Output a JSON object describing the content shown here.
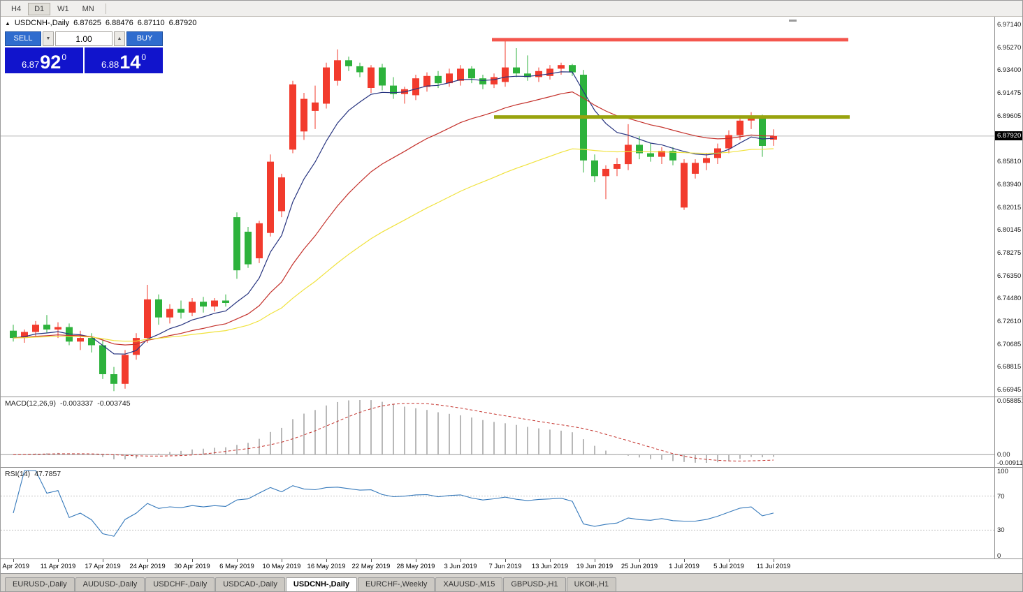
{
  "toolbar": {
    "timeframes": [
      {
        "label": "H4",
        "active": false
      },
      {
        "label": "D1",
        "active": true
      },
      {
        "label": "W1",
        "active": false
      },
      {
        "label": "MN",
        "active": false
      }
    ]
  },
  "chart": {
    "collapse_glyph": "▲",
    "title": "USDCNH-,Daily",
    "ohlc": {
      "open": "6.87625",
      "high": "6.88476",
      "low": "6.87110",
      "close": "6.87920"
    }
  },
  "one_click": {
    "sell_label": "SELL",
    "buy_label": "BUY",
    "volume": "1.00",
    "volume_down_glyph": "▼",
    "volume_up_glyph": "▲",
    "sell_price": {
      "main": "6.87",
      "pips": "92",
      "sub": "0"
    },
    "buy_price": {
      "main": "6.88",
      "pips": "14",
      "sub": "0"
    }
  },
  "price_axis": {
    "labels": [
      [
        "6.97140",
        6.9714
      ],
      [
        "6.95270",
        6.9527
      ],
      [
        "6.93400",
        6.934
      ],
      [
        "6.91475",
        6.91475
      ],
      [
        "6.89605",
        6.89605
      ],
      [
        "6.85810",
        6.8581
      ],
      [
        "6.83940",
        6.8394
      ],
      [
        "6.82015",
        6.82015
      ],
      [
        "6.80145",
        6.80145
      ],
      [
        "6.78275",
        6.78275
      ],
      [
        "6.76350",
        6.7635
      ],
      [
        "6.74480",
        6.7448
      ],
      [
        "6.72610",
        6.7261
      ],
      [
        "6.70685",
        6.70685
      ],
      [
        "6.68815",
        6.68815
      ],
      [
        "6.66945",
        6.66945
      ]
    ],
    "current": {
      "text": "6.87920",
      "value": 6.8792
    }
  },
  "indicators": {
    "macd": {
      "label": "MACD(12,26,9)",
      "value_main": "-0.003337",
      "value_signal": "-0.003745",
      "params": [
        12,
        26,
        9
      ],
      "axis": [
        [
          "0.058851",
          "max"
        ],
        [
          "0.00",
          "zero"
        ],
        [
          "-0.009116",
          "min"
        ]
      ]
    },
    "rsi": {
      "label": "RSI(14)",
      "value": "47.7857",
      "period": 14,
      "levels": [
        70,
        30
      ],
      "axis": [
        [
          "100",
          100
        ],
        [
          "70",
          70
        ],
        [
          "30",
          30
        ],
        [
          "0",
          0
        ]
      ]
    }
  },
  "date_axis": {
    "labels": [
      [
        0,
        "5 Apr 2019"
      ],
      [
        4,
        "11 Apr 2019"
      ],
      [
        8,
        "17 Apr 2019"
      ],
      [
        12,
        "24 Apr 2019"
      ],
      [
        16,
        "30 Apr 2019"
      ],
      [
        20,
        "6 May 2019"
      ],
      [
        24,
        "10 May 2019"
      ],
      [
        28,
        "16 May 2019"
      ],
      [
        32,
        "22 May 2019"
      ],
      [
        36,
        "28 May 2019"
      ],
      [
        40,
        "3 Jun 2019"
      ],
      [
        44,
        "7 Jun 2019"
      ],
      [
        48,
        "13 Jun 2019"
      ],
      [
        52,
        "19 Jun 2019"
      ],
      [
        56,
        "25 Jun 2019"
      ],
      [
        60,
        "1 Jul 2019"
      ],
      [
        64,
        "5 Jul 2019"
      ],
      [
        68,
        "11 Jul 2019"
      ]
    ]
  },
  "tabs": [
    {
      "label": "EURUSD-,Daily",
      "active": false
    },
    {
      "label": "AUDUSD-,Daily",
      "active": false
    },
    {
      "label": "USDCHF-,Daily",
      "active": false
    },
    {
      "label": "USDCAD-,Daily",
      "active": false
    },
    {
      "label": "USDCNH-,Daily",
      "active": true
    },
    {
      "label": "EURCHF-,Weekly",
      "active": false
    },
    {
      "label": "XAUUSD-,M15",
      "active": false
    },
    {
      "label": "GBPUSD-,H1",
      "active": false
    },
    {
      "label": "UKOil-,H1",
      "active": false
    }
  ],
  "chart_data": {
    "type": "candlestick",
    "symbol": "USDCNH-",
    "timeframe": "Daily",
    "ylim": [
      6.66945,
      6.9714
    ],
    "current_price": 6.8792,
    "last_ohlc": [
      6.87625,
      6.88476,
      6.8711,
      6.8792
    ],
    "candles": [
      [
        6.718,
        6.723,
        6.709,
        6.712
      ],
      [
        6.712,
        6.719,
        6.708,
        6.717
      ],
      [
        6.717,
        6.726,
        6.713,
        6.723
      ],
      [
        6.723,
        6.731,
        6.716,
        6.719
      ],
      [
        6.719,
        6.725,
        6.712,
        6.721
      ],
      [
        6.721,
        6.724,
        6.706,
        6.709
      ],
      [
        6.709,
        6.718,
        6.702,
        6.712
      ],
      [
        6.712,
        6.716,
        6.7,
        6.706
      ],
      [
        6.706,
        6.71,
        6.678,
        6.682
      ],
      [
        6.682,
        6.688,
        6.668,
        6.674
      ],
      [
        6.674,
        6.702,
        6.67,
        6.698
      ],
      [
        6.698,
        6.716,
        6.694,
        6.712
      ],
      [
        6.712,
        6.756,
        6.708,
        6.744
      ],
      [
        6.744,
        6.748,
        6.723,
        6.729
      ],
      [
        6.729,
        6.74,
        6.724,
        6.736
      ],
      [
        6.736,
        6.743,
        6.728,
        6.733
      ],
      [
        6.733,
        6.745,
        6.73,
        6.742
      ],
      [
        6.742,
        6.746,
        6.733,
        6.738
      ],
      [
        6.738,
        6.745,
        6.734,
        6.743
      ],
      [
        6.743,
        6.748,
        6.738,
        6.741
      ],
      [
        6.812,
        6.816,
        6.761,
        6.768
      ],
      [
        6.8,
        6.804,
        6.77,
        6.773
      ],
      [
        6.778,
        6.809,
        6.774,
        6.807
      ],
      [
        6.799,
        6.864,
        6.796,
        6.858
      ],
      [
        6.817,
        6.848,
        6.812,
        6.845
      ],
      [
        6.868,
        6.925,
        6.865,
        6.922
      ],
      [
        6.883,
        6.915,
        6.876,
        6.91
      ],
      [
        6.9,
        6.921,
        6.885,
        6.907
      ],
      [
        6.906,
        6.94,
        6.902,
        6.936
      ],
      [
        6.925,
        6.951,
        6.921,
        6.942
      ],
      [
        6.942,
        6.945,
        6.933,
        6.937
      ],
      [
        6.937,
        6.94,
        6.928,
        6.932
      ],
      [
        6.919,
        6.938,
        6.915,
        6.936
      ],
      [
        6.936,
        6.939,
        6.917,
        6.921
      ],
      [
        6.921,
        6.928,
        6.91,
        6.914
      ],
      [
        6.914,
        6.92,
        6.906,
        6.918
      ],
      [
        6.913,
        6.93,
        6.909,
        6.927
      ],
      [
        6.92,
        6.932,
        6.916,
        6.929
      ],
      [
        6.929,
        6.933,
        6.919,
        6.923
      ],
      [
        6.923,
        6.935,
        6.92,
        6.931
      ],
      [
        6.925,
        6.938,
        6.921,
        6.935
      ],
      [
        6.935,
        6.937,
        6.923,
        6.927
      ],
      [
        6.927,
        6.93,
        6.918,
        6.922
      ],
      [
        6.922,
        6.931,
        6.919,
        6.928
      ],
      [
        6.924,
        6.959,
        6.92,
        6.936
      ],
      [
        6.936,
        6.952,
        6.928,
        6.931
      ],
      [
        6.931,
        6.946,
        6.925,
        6.928
      ],
      [
        6.928,
        6.936,
        6.924,
        6.933
      ],
      [
        6.929,
        6.938,
        6.926,
        6.935
      ],
      [
        6.935,
        6.94,
        6.93,
        6.938
      ],
      [
        6.938,
        6.939,
        6.929,
        6.932
      ],
      [
        6.93,
        6.934,
        6.849,
        6.859
      ],
      [
        6.859,
        6.864,
        6.841,
        6.846
      ],
      [
        6.846,
        6.855,
        6.827,
        6.852
      ],
      [
        6.852,
        6.861,
        6.846,
        6.856
      ],
      [
        6.856,
        6.889,
        6.851,
        6.872
      ],
      [
        6.872,
        6.879,
        6.86,
        6.865
      ],
      [
        6.865,
        6.873,
        6.858,
        6.862
      ],
      [
        6.862,
        6.87,
        6.856,
        6.867
      ],
      [
        6.867,
        6.87,
        6.855,
        6.859
      ],
      [
        6.82,
        6.86,
        6.818,
        6.857
      ],
      [
        6.848,
        6.86,
        6.844,
        6.857
      ],
      [
        6.857,
        6.865,
        6.851,
        6.861
      ],
      [
        6.861,
        6.873,
        6.856,
        6.869
      ],
      [
        6.869,
        6.884,
        6.865,
        6.88
      ],
      [
        6.88,
        6.895,
        6.876,
        6.892
      ],
      [
        6.892,
        6.899,
        6.885,
        6.896
      ],
      [
        6.896,
        6.897,
        6.862,
        6.871
      ],
      [
        6.87625,
        6.88476,
        6.8711,
        6.8792
      ]
    ],
    "overlays": [
      {
        "name": "ma-fast",
        "period": 8,
        "color": "#26337f"
      },
      {
        "name": "ma-mid",
        "period": 21,
        "color": "#c4312b"
      },
      {
        "name": "ma-slow",
        "period": 45,
        "color": "#f0e23c"
      }
    ],
    "levels": [
      {
        "name": "resistance",
        "price": 6.959,
        "from_index": 42.8,
        "to_index": 74.7,
        "color": "#f4564d",
        "width": 5
      },
      {
        "name": "support",
        "price": 6.895,
        "from_index": 43.0,
        "to_index": 74.8,
        "color": "#98a30e",
        "width": 5
      }
    ],
    "colors": {
      "up": "#f23b2d",
      "down": "#2db23c",
      "macd_hist": "#b8b8b8",
      "macd_signal": "#c4312b",
      "rsi": "#3579bb",
      "current_line": "#b8b8b8"
    }
  }
}
